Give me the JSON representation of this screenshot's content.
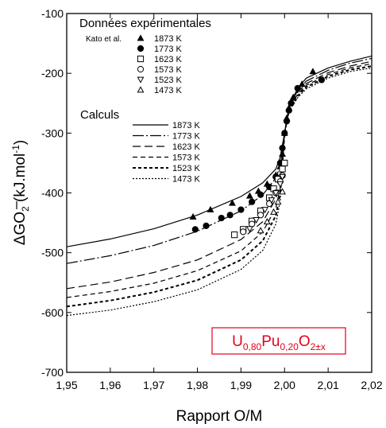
{
  "chart_data": {
    "type": "scatter",
    "title": "",
    "xlabel": "Rapport O/M",
    "ylabel_parts": {
      "delta": "Δ",
      "g": "G",
      "o": "O",
      "sub2": "2",
      "unit": " (kJ.mol",
      "sup": "-1",
      "close": ")"
    },
    "xlim": [
      1.95,
      2.02
    ],
    "ylim": [
      -700,
      -100
    ],
    "xticks": [
      "1,95",
      "1,96",
      "1,97",
      "1,98",
      "1,99",
      "2,00",
      "2,01",
      "2,02"
    ],
    "yticks": [
      "-700",
      "-600",
      "-500",
      "-400",
      "-300",
      "-200",
      "-100"
    ],
    "grid": false,
    "legend_experimental": {
      "title": "Données expérimentales",
      "source": "Kato et al.",
      "entries": [
        {
          "label": "1873 K",
          "marker": "triangle-filled"
        },
        {
          "label": "1773 K",
          "marker": "circle-filled"
        },
        {
          "label": "1623 K",
          "marker": "square-open"
        },
        {
          "label": "1573 K",
          "marker": "circle-open"
        },
        {
          "label": "1523 K",
          "marker": "triangle-down-open"
        },
        {
          "label": "1473 K",
          "marker": "triangle-open"
        }
      ]
    },
    "legend_calc": {
      "title": "Calculs",
      "entries": [
        {
          "label": "1873 K",
          "dash": "none",
          "width": 1.2
        },
        {
          "label": "1773 K",
          "dash": "14 3 2 3",
          "width": 1.2
        },
        {
          "label": "1623 K",
          "dash": "10 5",
          "width": 1.2
        },
        {
          "label": "1573 K",
          "dash": "6 4",
          "width": 1.2
        },
        {
          "label": "1523 K",
          "dash": "4 3",
          "width": 2
        },
        {
          "label": "1473 K",
          "dash": "2 2",
          "width": 1.2
        }
      ]
    },
    "compound_label": {
      "base": [
        "U",
        "Pu",
        "O"
      ],
      "subs": [
        "0,80",
        "0,20",
        "2±x"
      ],
      "color": "#e3001b"
    },
    "calc_series": [
      {
        "name": "1873 K",
        "points": [
          [
            1.95,
            -490
          ],
          [
            1.96,
            -477
          ],
          [
            1.97,
            -460
          ],
          [
            1.98,
            -437
          ],
          [
            1.99,
            -406
          ],
          [
            1.995,
            -383
          ],
          [
            1.998,
            -360
          ],
          [
            1.999,
            -340
          ],
          [
            2.0,
            -300
          ],
          [
            2.001,
            -256
          ],
          [
            2.003,
            -225
          ],
          [
            2.005,
            -208
          ],
          [
            2.01,
            -191
          ],
          [
            2.015,
            -180
          ],
          [
            2.02,
            -171
          ]
        ]
      },
      {
        "name": "1773 K",
        "points": [
          [
            1.95,
            -518
          ],
          [
            1.96,
            -505
          ],
          [
            1.97,
            -488
          ],
          [
            1.98,
            -464
          ],
          [
            1.99,
            -430
          ],
          [
            1.995,
            -403
          ],
          [
            1.998,
            -375
          ],
          [
            1.999,
            -355
          ],
          [
            2.0,
            -300
          ],
          [
            2.001,
            -257
          ],
          [
            2.003,
            -229
          ],
          [
            2.005,
            -213
          ],
          [
            2.01,
            -195
          ],
          [
            2.015,
            -183
          ],
          [
            2.02,
            -175
          ]
        ]
      },
      {
        "name": "1623 K",
        "points": [
          [
            1.95,
            -560
          ],
          [
            1.96,
            -549
          ],
          [
            1.97,
            -533
          ],
          [
            1.98,
            -512
          ],
          [
            1.99,
            -478
          ],
          [
            1.995,
            -448
          ],
          [
            1.998,
            -410
          ],
          [
            1.999,
            -380
          ],
          [
            2.0,
            -300
          ],
          [
            2.001,
            -258
          ],
          [
            2.003,
            -232
          ],
          [
            2.005,
            -217
          ],
          [
            2.01,
            -199
          ],
          [
            2.015,
            -188
          ],
          [
            2.02,
            -180
          ]
        ]
      },
      {
        "name": "1573 K",
        "points": [
          [
            1.95,
            -575
          ],
          [
            1.96,
            -565
          ],
          [
            1.97,
            -551
          ],
          [
            1.98,
            -530
          ],
          [
            1.99,
            -497
          ],
          [
            1.995,
            -465
          ],
          [
            1.998,
            -425
          ],
          [
            1.999,
            -392
          ],
          [
            2.0,
            -300
          ],
          [
            2.001,
            -260
          ],
          [
            2.003,
            -235
          ],
          [
            2.005,
            -220
          ],
          [
            2.01,
            -202
          ],
          [
            2.015,
            -191
          ],
          [
            2.02,
            -184
          ]
        ]
      },
      {
        "name": "1523 K",
        "points": [
          [
            1.95,
            -590
          ],
          [
            1.96,
            -580
          ],
          [
            1.97,
            -566
          ],
          [
            1.98,
            -546
          ],
          [
            1.99,
            -512
          ],
          [
            1.995,
            -480
          ],
          [
            1.998,
            -438
          ],
          [
            1.999,
            -402
          ],
          [
            2.0,
            -300
          ],
          [
            2.001,
            -262
          ],
          [
            2.003,
            -238
          ],
          [
            2.005,
            -223
          ],
          [
            2.01,
            -205
          ],
          [
            2.015,
            -194
          ],
          [
            2.02,
            -188
          ]
        ]
      },
      {
        "name": "1473 K",
        "points": [
          [
            1.95,
            -605
          ],
          [
            1.96,
            -596
          ],
          [
            1.97,
            -582
          ],
          [
            1.98,
            -562
          ],
          [
            1.99,
            -528
          ],
          [
            1.995,
            -496
          ],
          [
            1.998,
            -452
          ],
          [
            1.999,
            -413
          ],
          [
            2.0,
            -300
          ],
          [
            2.001,
            -264
          ],
          [
            2.003,
            -241
          ],
          [
            2.005,
            -226
          ],
          [
            2.01,
            -208
          ],
          [
            2.015,
            -197
          ],
          [
            2.02,
            -191
          ]
        ]
      }
    ],
    "experimental_series": [
      {
        "name": "1873 K",
        "marker": "triangle-filled",
        "points": [
          [
            1.979,
            -440
          ],
          [
            1.983,
            -428
          ],
          [
            1.988,
            -417
          ],
          [
            1.992,
            -405
          ],
          [
            1.994,
            -397
          ],
          [
            1.996,
            -385
          ],
          [
            1.998,
            -370
          ],
          [
            1.999,
            -356
          ],
          [
            1.9995,
            -335
          ],
          [
            2.0,
            -300
          ],
          [
            2.0005,
            -275
          ],
          [
            2.001,
            -258
          ],
          [
            2.002,
            -240
          ],
          [
            2.004,
            -218
          ],
          [
            2.0065,
            -197
          ]
        ]
      },
      {
        "name": "1773 K",
        "marker": "circle-filled",
        "points": [
          [
            1.9795,
            -461
          ],
          [
            1.982,
            -455
          ],
          [
            1.9855,
            -442
          ],
          [
            1.9875,
            -437
          ],
          [
            1.99,
            -428
          ],
          [
            1.9925,
            -415
          ],
          [
            1.9945,
            -403
          ],
          [
            1.9965,
            -390
          ],
          [
            1.998,
            -373
          ],
          [
            1.999,
            -350
          ],
          [
            1.9995,
            -325
          ],
          [
            2.0,
            -300
          ],
          [
            2.0005,
            -280
          ],
          [
            2.001,
            -262
          ],
          [
            2.0015,
            -250
          ],
          [
            2.003,
            -225
          ],
          [
            2.0085,
            -211
          ]
        ]
      },
      {
        "name": "1623 K",
        "marker": "square-open",
        "points": [
          [
            1.9885,
            -470
          ],
          [
            1.9905,
            -461
          ],
          [
            1.9925,
            -447
          ],
          [
            1.9945,
            -430
          ],
          [
            1.9965,
            -408
          ],
          [
            1.9975,
            -393
          ],
          [
            1.9985,
            -377
          ],
          [
            1.9995,
            -360
          ],
          [
            2.0,
            -350
          ]
        ]
      },
      {
        "name": "1573 K",
        "marker": "circle-open",
        "points": [
          [
            1.9905,
            -465
          ],
          [
            1.9925,
            -452
          ],
          [
            1.9945,
            -437
          ],
          [
            1.9965,
            -418
          ],
          [
            1.998,
            -400
          ],
          [
            1.999,
            -381
          ],
          [
            1.9995,
            -371
          ]
        ]
      },
      {
        "name": "1523 K",
        "marker": "triangle-down-open",
        "points": [
          [
            1.992,
            -460
          ],
          [
            1.9935,
            -445
          ],
          [
            1.9955,
            -428
          ],
          [
            1.997,
            -412
          ],
          [
            1.998,
            -400
          ],
          [
            1.999,
            -385
          ],
          [
            1.9995,
            -373
          ]
        ]
      },
      {
        "name": "1473 K",
        "marker": "triangle-open",
        "points": [
          [
            1.9945,
            -463
          ],
          [
            1.996,
            -448
          ],
          [
            1.9975,
            -432
          ],
          [
            1.9985,
            -415
          ],
          [
            1.9995,
            -398
          ]
        ]
      }
    ]
  }
}
